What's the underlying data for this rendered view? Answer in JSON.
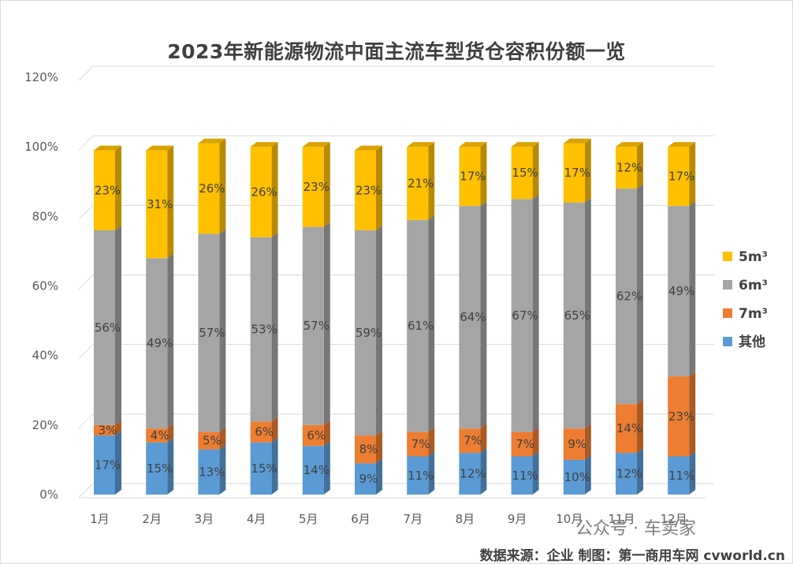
{
  "chart_data": {
    "type": "bar",
    "stacked": true,
    "three_d": true,
    "title": "2023年新能源物流中面主流车型货仓容积份额一览",
    "categories": [
      "1月",
      "2月",
      "3月",
      "4月",
      "5月",
      "6月",
      "7月",
      "8月",
      "9月",
      "10月",
      "11月",
      "12月"
    ],
    "series": [
      {
        "name": "其他",
        "color": "#5b9bd5",
        "values": [
          17,
          15,
          13,
          15,
          14,
          9,
          11,
          12,
          11,
          10,
          12,
          11
        ]
      },
      {
        "name": "7m³",
        "color": "#ed7d31",
        "values": [
          3,
          4,
          5,
          6,
          6,
          8,
          7,
          7,
          7,
          9,
          14,
          23
        ]
      },
      {
        "name": "6m³",
        "color": "#a5a5a5",
        "values": [
          56,
          49,
          57,
          53,
          57,
          59,
          61,
          64,
          67,
          65,
          62,
          49
        ]
      },
      {
        "name": "5m³",
        "color": "#ffc000",
        "values": [
          23,
          31,
          26,
          26,
          23,
          23,
          21,
          17,
          15,
          17,
          12,
          17
        ]
      }
    ],
    "yticks": [
      "0%",
      "20%",
      "40%",
      "60%",
      "80%",
      "100%",
      "120%"
    ],
    "ylim": [
      0,
      120
    ],
    "grid": true,
    "legend": "right",
    "legend_order": [
      "5m³",
      "6m³",
      "7m³",
      "其他"
    ],
    "data_label_suffix": "%"
  },
  "watermark": "公众号 · 车卖家",
  "source_note": "数据来源：企业 制图：第一商用车网 cvworld.cn"
}
